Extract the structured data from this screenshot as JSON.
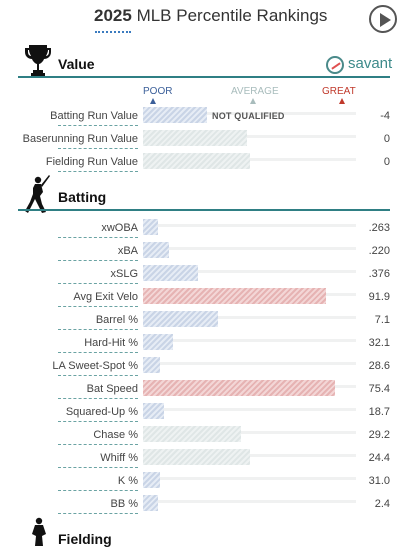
{
  "header": {
    "year": "2025",
    "title": "MLB Percentile Rankings"
  },
  "savant": {
    "label": "savant"
  },
  "scale": {
    "poor": "POOR",
    "average": "AVERAGE",
    "great": "GREAT"
  },
  "colors": {
    "teal": "#2f7f84",
    "poor": "#3b5f99",
    "average": "#9fb8b8",
    "great": "#c0392b"
  },
  "value_section": {
    "title": "Value",
    "not_qualified": "NOT QUALIFIED",
    "rows": [
      {
        "label": "Batting Run Value",
        "value": "-4",
        "percentile": 30,
        "tone": "blue"
      },
      {
        "label": "Baserunning Run Value",
        "value": "0",
        "percentile": 49,
        "tone": "gray"
      },
      {
        "label": "Fielding Run Value",
        "value": "0",
        "percentile": 50,
        "tone": "gray"
      }
    ]
  },
  "batting_section": {
    "title": "Batting",
    "rows": [
      {
        "label": "xwOBA",
        "value": ".263",
        "percentile": 7,
        "tone": "blue"
      },
      {
        "label": "xBA",
        "value": ".220",
        "percentile": 12,
        "tone": "blue"
      },
      {
        "label": "xSLG",
        "value": ".376",
        "percentile": 26,
        "tone": "blue"
      },
      {
        "label": "Avg Exit Velo",
        "value": "91.9",
        "percentile": 86,
        "tone": "red"
      },
      {
        "label": "Barrel %",
        "value": "7.1",
        "percentile": 35,
        "tone": "blue"
      },
      {
        "label": "Hard-Hit %",
        "value": "32.1",
        "percentile": 14,
        "tone": "blue"
      },
      {
        "label": "LA Sweet-Spot %",
        "value": "28.6",
        "percentile": 8,
        "tone": "blue"
      },
      {
        "label": "Bat Speed",
        "value": "75.4",
        "percentile": 90,
        "tone": "red"
      },
      {
        "label": "Squared-Up %",
        "value": "18.7",
        "percentile": 10,
        "tone": "blue"
      },
      {
        "label": "Chase %",
        "value": "29.2",
        "percentile": 46,
        "tone": "gray"
      },
      {
        "label": "Whiff %",
        "value": "24.4",
        "percentile": 50,
        "tone": "gray"
      },
      {
        "label": "K %",
        "value": "31.0",
        "percentile": 8,
        "tone": "blue"
      },
      {
        "label": "BB %",
        "value": "2.4",
        "percentile": 7,
        "tone": "blue"
      }
    ]
  },
  "fielding_section": {
    "title": "Fielding"
  }
}
